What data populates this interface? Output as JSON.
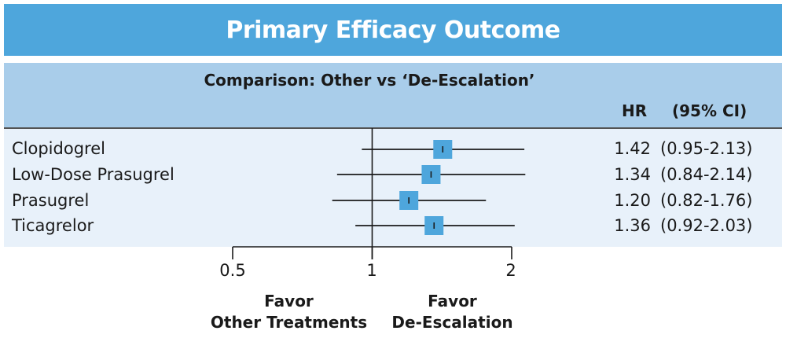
{
  "colors": {
    "title_bar": "#4ea6dc",
    "header_panel": "#a9cdea",
    "rows_panel": "#e8f1fa",
    "marker": "#4ea6dc",
    "line": "#1a1a1a"
  },
  "title": "Primary Efficacy Outcome",
  "subtitle": "Comparison: Other vs ‘De-Escalation’",
  "columns": {
    "hr": "HR",
    "ci": "(95% CI)"
  },
  "rows": [
    {
      "label": "Clopidogrel",
      "hr": "1.42",
      "ci": "(0.95-2.13)"
    },
    {
      "label": "Low-Dose Prasugrel",
      "hr": "1.34",
      "ci": "(0.84-2.14)"
    },
    {
      "label": "Prasugrel",
      "hr": "1.20",
      "ci": "(0.82-1.76)"
    },
    {
      "label": "Ticagrelor",
      "hr": "1.36",
      "ci": "(0.92-2.03)"
    }
  ],
  "axis": {
    "ticks": [
      "0.5",
      "1",
      "2"
    ]
  },
  "favor_left": [
    "Favor",
    "Other Treatments"
  ],
  "favor_right": [
    "Favor",
    "De-Escalation"
  ],
  "chart_data": {
    "type": "forest",
    "scale": "log",
    "reference_line": 1,
    "xlim": [
      0.5,
      2
    ],
    "x_ticks": [
      0.5,
      1,
      2
    ],
    "categories": [
      "Clopidogrel",
      "Low-Dose Prasugrel",
      "Prasugrel",
      "Ticagrelor"
    ],
    "estimates": [
      1.42,
      1.34,
      1.2,
      1.36
    ],
    "ci_low": [
      0.95,
      0.84,
      0.82,
      0.92
    ],
    "ci_high": [
      2.13,
      2.14,
      1.76,
      2.03
    ]
  }
}
